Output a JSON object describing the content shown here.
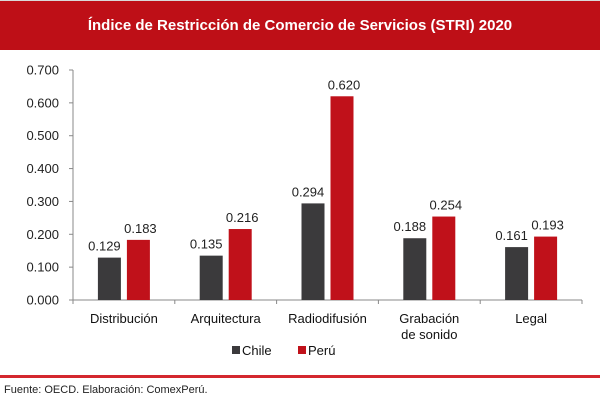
{
  "chart_data": {
    "type": "bar",
    "title": "Índice de Restricción de Comercio de Servicios (STRI) 2020",
    "categories": [
      [
        "Distribución"
      ],
      [
        "Arquitectura"
      ],
      [
        "Radiodifusión"
      ],
      [
        "Grabación",
        "de sonido"
      ],
      [
        "Legal"
      ]
    ],
    "series": [
      {
        "name": "Chile",
        "color": "#3B3A3C",
        "values": [
          0.129,
          0.135,
          0.294,
          0.188,
          0.161
        ],
        "labels": [
          "0.129",
          "0.135",
          "0.294",
          "0.188",
          "0.161"
        ]
      },
      {
        "name": "Perú",
        "color": "#C0111A",
        "values": [
          0.183,
          0.216,
          0.62,
          0.254,
          0.193
        ],
        "labels": [
          "0.183",
          "0.216",
          "0.620",
          "0.254",
          "0.193"
        ]
      }
    ],
    "yticks": [
      "0.000",
      "0.100",
      "0.200",
      "0.300",
      "0.400",
      "0.500",
      "0.600",
      "0.700"
    ],
    "ylim": [
      0,
      0.7
    ],
    "xlabel": "",
    "ylabel": "",
    "grid": false,
    "legend": "bottom-center"
  },
  "source": "Fuente: OECD. Elaboración: ComexPerú."
}
